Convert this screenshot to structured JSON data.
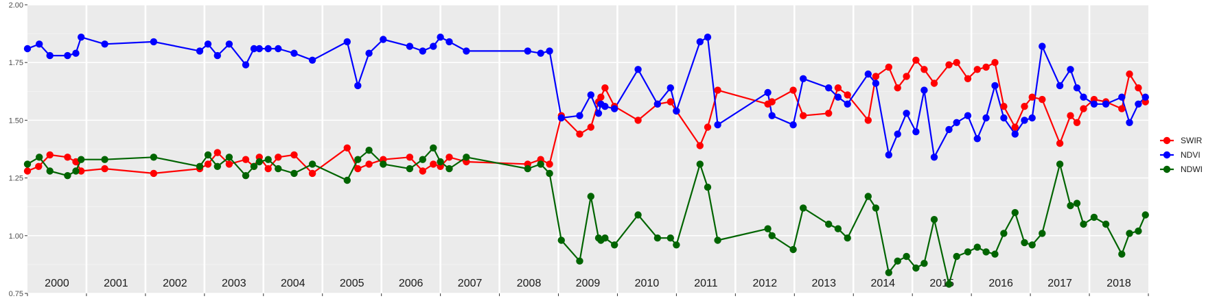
{
  "chart_data": {
    "type": "line",
    "title": "",
    "xlabel": "",
    "ylabel": "",
    "xlim": [
      2000.0,
      2019.0
    ],
    "ylim": [
      0.75,
      2.0
    ],
    "y_ticks": [
      0.75,
      1.0,
      1.25,
      1.5,
      1.75,
      2.0
    ],
    "y_tick_labels": [
      "0.75",
      "1.00",
      "1.25",
      "1.50",
      "1.75",
      "2.00"
    ],
    "year_labels": [
      "2000",
      "2001",
      "2002",
      "2003",
      "2004",
      "2005",
      "2006",
      "2007",
      "2008",
      "2009",
      "2010",
      "2011",
      "2012",
      "2013",
      "2014",
      "2015",
      "2016",
      "2017",
      "2018"
    ],
    "grid": true,
    "legend_position": "right",
    "series": [
      {
        "name": "SWIR",
        "color": "#ff0000",
        "x": [
          2000.0,
          2000.19,
          2000.38,
          2000.68,
          2000.82,
          2000.91,
          2001.31,
          2002.14,
          2002.92,
          2003.06,
          2003.22,
          2003.42,
          2003.7,
          2003.84,
          2003.93,
          2004.08,
          2004.25,
          2004.52,
          2004.83,
          2005.42,
          2005.6,
          2005.79,
          2006.03,
          2006.48,
          2006.7,
          2006.88,
          2007.0,
          2007.15,
          2007.44,
          2008.48,
          2008.7,
          2008.85,
          2009.05,
          2009.36,
          2009.55,
          2009.68,
          2009.72,
          2009.79,
          2009.95,
          2010.35,
          2010.68,
          2010.9,
          2011.0,
          2011.4,
          2011.53,
          2011.7,
          2012.55,
          2012.62,
          2012.98,
          2013.15,
          2013.58,
          2013.74,
          2013.9,
          2014.25,
          2014.38,
          2014.6,
          2014.75,
          2014.9,
          2015.06,
          2015.2,
          2015.37,
          2015.62,
          2015.75,
          2015.94,
          2016.1,
          2016.25,
          2016.4,
          2016.55,
          2016.74,
          2016.9,
          2017.03,
          2017.2,
          2017.5,
          2017.68,
          2017.79,
          2017.9,
          2018.08,
          2018.28,
          2018.55,
          2018.68,
          2018.83,
          2018.95
        ],
        "y": [
          1.28,
          1.3,
          1.35,
          1.34,
          1.32,
          1.28,
          1.29,
          1.27,
          1.29,
          1.31,
          1.36,
          1.31,
          1.33,
          1.3,
          1.34,
          1.29,
          1.34,
          1.35,
          1.27,
          1.38,
          1.29,
          1.31,
          1.33,
          1.34,
          1.28,
          1.31,
          1.3,
          1.34,
          1.32,
          1.31,
          1.33,
          1.31,
          1.52,
          1.44,
          1.47,
          1.58,
          1.6,
          1.64,
          1.56,
          1.5,
          1.57,
          1.58,
          1.54,
          1.39,
          1.47,
          1.63,
          1.57,
          1.58,
          1.63,
          1.52,
          1.53,
          1.64,
          1.61,
          1.5,
          1.69,
          1.73,
          1.64,
          1.69,
          1.76,
          1.72,
          1.66,
          1.74,
          1.75,
          1.68,
          1.72,
          1.73,
          1.75,
          1.56,
          1.47,
          1.56,
          1.6,
          1.59,
          1.4,
          1.52,
          1.49,
          1.55,
          1.59,
          1.58,
          1.55,
          1.7,
          1.64,
          1.58
        ]
      },
      {
        "name": "NDVI",
        "color": "#0000ff",
        "x": [
          2000.0,
          2000.2,
          2000.38,
          2000.68,
          2000.82,
          2000.91,
          2001.31,
          2002.14,
          2002.92,
          2003.06,
          2003.22,
          2003.42,
          2003.7,
          2003.84,
          2003.93,
          2004.08,
          2004.25,
          2004.52,
          2004.83,
          2005.42,
          2005.6,
          2005.79,
          2006.03,
          2006.48,
          2006.7,
          2006.88,
          2007.0,
          2007.15,
          2007.44,
          2008.48,
          2008.7,
          2008.85,
          2009.05,
          2009.36,
          2009.55,
          2009.68,
          2009.72,
          2009.79,
          2009.95,
          2010.35,
          2010.68,
          2010.9,
          2011.0,
          2011.4,
          2011.53,
          2011.7,
          2012.55,
          2012.62,
          2012.98,
          2013.15,
          2013.58,
          2013.74,
          2013.9,
          2014.25,
          2014.38,
          2014.6,
          2014.75,
          2014.9,
          2015.06,
          2015.2,
          2015.37,
          2015.62,
          2015.75,
          2015.94,
          2016.1,
          2016.25,
          2016.4,
          2016.55,
          2016.74,
          2016.9,
          2017.03,
          2017.2,
          2017.5,
          2017.68,
          2017.79,
          2017.9,
          2018.08,
          2018.28,
          2018.55,
          2018.68,
          2018.83,
          2018.95
        ],
        "y": [
          1.81,
          1.83,
          1.78,
          1.78,
          1.79,
          1.86,
          1.83,
          1.84,
          1.8,
          1.83,
          1.78,
          1.83,
          1.74,
          1.81,
          1.81,
          1.81,
          1.81,
          1.79,
          1.76,
          1.84,
          1.65,
          1.79,
          1.85,
          1.82,
          1.8,
          1.82,
          1.86,
          1.84,
          1.8,
          1.8,
          1.79,
          1.8,
          1.51,
          1.52,
          1.61,
          1.53,
          1.57,
          1.56,
          1.55,
          1.72,
          1.57,
          1.64,
          1.54,
          1.84,
          1.86,
          1.48,
          1.62,
          1.52,
          1.48,
          1.68,
          1.64,
          1.6,
          1.57,
          1.7,
          1.66,
          1.35,
          1.44,
          1.53,
          1.45,
          1.63,
          1.34,
          1.46,
          1.49,
          1.52,
          1.42,
          1.51,
          1.65,
          1.51,
          1.44,
          1.5,
          1.51,
          1.82,
          1.65,
          1.72,
          1.64,
          1.6,
          1.57,
          1.57,
          1.6,
          1.49,
          1.57,
          1.6
        ]
      },
      {
        "name": "NDWI",
        "color": "#006400",
        "x": [
          2000.0,
          2000.2,
          2000.38,
          2000.68,
          2000.82,
          2000.91,
          2001.31,
          2002.14,
          2002.92,
          2003.06,
          2003.22,
          2003.42,
          2003.7,
          2003.84,
          2003.93,
          2004.08,
          2004.25,
          2004.52,
          2004.83,
          2005.42,
          2005.6,
          2005.79,
          2006.03,
          2006.48,
          2006.7,
          2006.88,
          2007.0,
          2007.15,
          2007.44,
          2008.48,
          2008.7,
          2008.85,
          2009.05,
          2009.36,
          2009.55,
          2009.68,
          2009.72,
          2009.79,
          2009.95,
          2010.35,
          2010.68,
          2010.9,
          2011.0,
          2011.4,
          2011.53,
          2011.7,
          2012.55,
          2012.62,
          2012.98,
          2013.15,
          2013.58,
          2013.74,
          2013.9,
          2014.25,
          2014.38,
          2014.6,
          2014.75,
          2014.9,
          2015.06,
          2015.2,
          2015.37,
          2015.62,
          2015.75,
          2015.94,
          2016.1,
          2016.25,
          2016.4,
          2016.55,
          2016.74,
          2016.9,
          2017.03,
          2017.2,
          2017.5,
          2017.68,
          2017.79,
          2017.9,
          2018.08,
          2018.28,
          2018.55,
          2018.68,
          2018.83,
          2018.95
        ],
        "y": [
          1.31,
          1.34,
          1.28,
          1.26,
          1.28,
          1.33,
          1.33,
          1.34,
          1.3,
          1.35,
          1.3,
          1.34,
          1.26,
          1.3,
          1.32,
          1.33,
          1.29,
          1.27,
          1.31,
          1.24,
          1.33,
          1.37,
          1.31,
          1.29,
          1.33,
          1.38,
          1.32,
          1.29,
          1.34,
          1.29,
          1.31,
          1.27,
          0.98,
          0.89,
          1.17,
          0.99,
          0.98,
          0.99,
          0.96,
          1.09,
          0.99,
          0.99,
          0.96,
          1.31,
          1.21,
          0.98,
          1.03,
          1.0,
          0.94,
          1.12,
          1.05,
          1.03,
          0.99,
          1.17,
          1.12,
          0.84,
          0.89,
          0.91,
          0.86,
          0.88,
          1.07,
          0.79,
          0.91,
          0.93,
          0.95,
          0.93,
          0.92,
          1.01,
          1.1,
          0.97,
          0.96,
          1.01,
          1.31,
          1.13,
          1.14,
          1.05,
          1.08,
          1.05,
          0.92,
          1.01,
          1.02,
          1.09
        ]
      }
    ]
  }
}
